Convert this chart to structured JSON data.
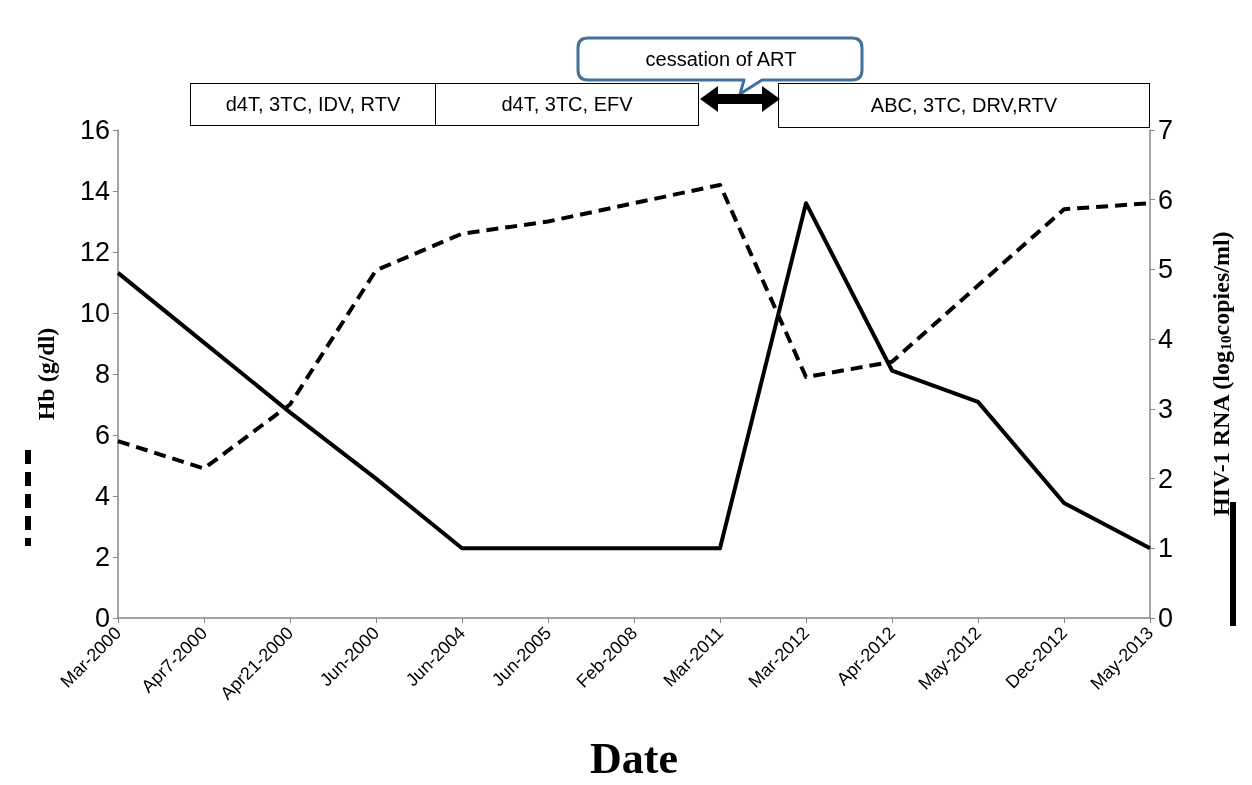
{
  "chart_data": {
    "type": "line",
    "xlabel": "Date",
    "ylabel": "Hb (g/dl)",
    "y2label": "HIV-1 RNA (log$_{10}$copies/ml)",
    "categories": [
      "Mar-2000",
      "Apr7-2000",
      "Apr21-2000",
      "Jun-2000",
      "Jun-2004",
      "Jun-2005",
      "Feb-2008",
      "Mar-2011",
      "Mar-2012",
      "Apr-2012",
      "May-2012",
      "Dec-2012",
      "May-2013"
    ],
    "series": [
      {
        "color": "#000000",
        "line_style": "dashed",
        "values": [
          5.8,
          4.9,
          7.0,
          11.4,
          12.6,
          13.0,
          13.6,
          14.2,
          7.9,
          8.4,
          10.9,
          13.4,
          13.6
        ]
      },
      {
        "color": "#000000",
        "line_style": "solid",
        "axis": "y2",
        "values": [
          4.95,
          3.95,
          2.95,
          2.0,
          1.0,
          null,
          null,
          1.0,
          5.95,
          3.55,
          3.1,
          1.65,
          1.0
        ]
      }
    ],
    "ylim": [
      0,
      16
    ],
    "yticks": [
      0,
      2,
      4,
      6,
      8,
      10,
      12,
      14,
      16
    ],
    "y2lim": [
      0,
      7
    ],
    "y2ticks": [
      0,
      1,
      2,
      3,
      4,
      5,
      6,
      7
    ],
    "grid": false,
    "marker": "none",
    "annotations": [
      "d4T, 3TC, IDV, RTV",
      "d4T, 3TC, EFV",
      "ABC, 3TC, DRV,RTV",
      "cessation of ART"
    ]
  }
}
